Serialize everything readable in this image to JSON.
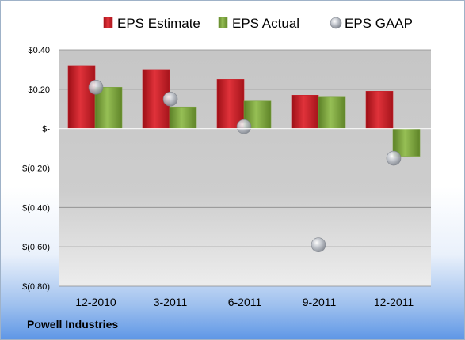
{
  "footer": {
    "company": "Powell Industries"
  },
  "colors": {
    "estimate": "#c8202a",
    "actual": "#7ba23f",
    "gaap": "#a8adb6"
  },
  "chart_data": {
    "type": "bar",
    "title": "",
    "xlabel": "",
    "ylabel": "",
    "categories": [
      "12-2010",
      "3-2011",
      "6-2011",
      "9-2011",
      "12-2011"
    ],
    "series": [
      {
        "name": "EPS Estimate",
        "kind": "bar",
        "values": [
          0.32,
          0.3,
          0.25,
          0.17,
          0.19
        ]
      },
      {
        "name": "EPS Actual",
        "kind": "bar",
        "values": [
          0.21,
          0.11,
          0.14,
          0.16,
          -0.14
        ]
      },
      {
        "name": "EPS GAAP",
        "kind": "scatter",
        "values": [
          0.21,
          0.15,
          0.01,
          -0.59,
          -0.15
        ]
      }
    ],
    "ylim": [
      -0.8,
      0.4
    ],
    "yticks": [
      0.4,
      0.2,
      0,
      -0.2,
      -0.4,
      -0.6,
      -0.8
    ],
    "ytick_labels": [
      "$0.40",
      "$0.20",
      "$-",
      "$(0.20)",
      "$(0.40)",
      "$(0.60)",
      "$(0.80)"
    ],
    "legend_position": "top",
    "grid": true
  }
}
